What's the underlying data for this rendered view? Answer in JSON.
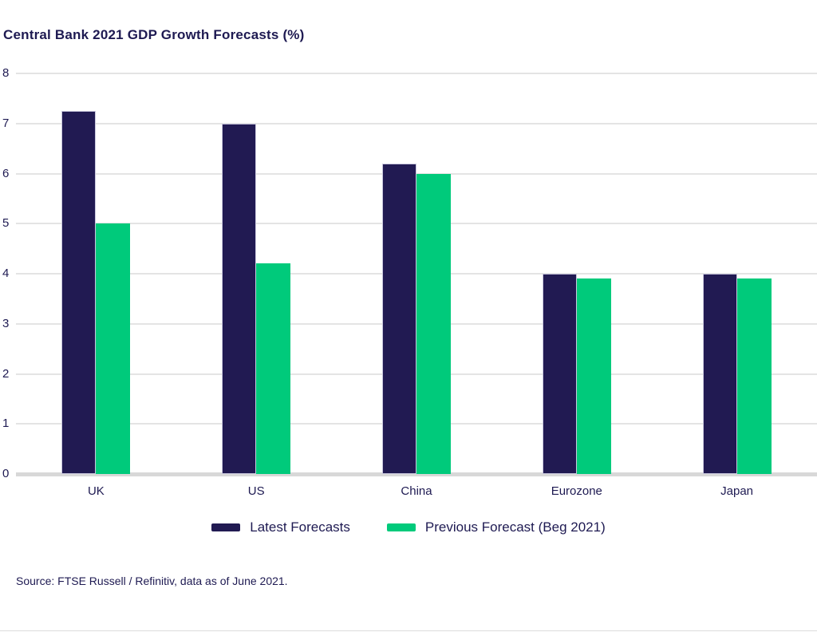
{
  "title": "Central Bank 2021 GDP Growth Forecasts (%)",
  "source": "Source: FTSE Russell / Refinitiv, data as of June 2021.",
  "colors": {
    "navy": "#211a52",
    "green": "#00ca7b",
    "text": "#1e1a52",
    "gridline": "#e4e4e4",
    "axis_line": "#d8d8d8",
    "navy_bar_stroke": "#c9c7dd"
  },
  "chart_data": {
    "type": "bar",
    "title": "Central Bank 2021 GDP Growth Forecasts (%)",
    "categories": [
      "UK",
      "US",
      "China",
      "Eurozone",
      "Japan"
    ],
    "series": [
      {
        "name": "Latest Forecasts",
        "color": "#211a52",
        "values": [
          7.25,
          7.0,
          6.2,
          4.0,
          4.0
        ]
      },
      {
        "name": "Previous Forecast (Beg 2021)",
        "color": "#00ca7b",
        "values": [
          5.0,
          4.2,
          6.0,
          3.9,
          3.9
        ]
      }
    ],
    "xlabel": "",
    "ylabel": "",
    "ylim": [
      0,
      8
    ],
    "yticks": [
      0,
      1,
      2,
      3,
      4,
      5,
      6,
      7,
      8
    ],
    "grid": true,
    "legend_position": "bottom"
  }
}
